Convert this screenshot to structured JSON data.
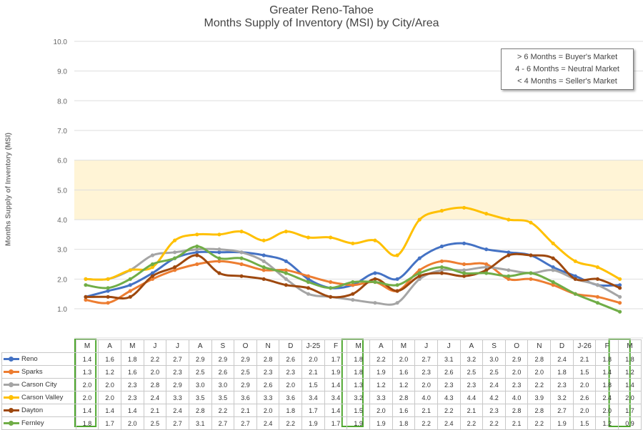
{
  "chart_data": {
    "type": "line",
    "title": "Greater Reno-Tahoe",
    "subtitle": "Months Supply of Inventory (MSI) by City/Area",
    "ylabel": "Months Supply of Inventory (MSI)",
    "ylim": [
      0,
      10
    ],
    "yticks": [
      "1.0",
      "2.0",
      "3.0",
      "4.0",
      "5.0",
      "6.0",
      "7.0",
      "8.0",
      "9.0",
      "10.0"
    ],
    "neutral_band": [
      4,
      6
    ],
    "categories": [
      "M",
      "A",
      "M",
      "J",
      "J",
      "A",
      "S",
      "O",
      "N",
      "D",
      "J-25",
      "F",
      "M",
      "A",
      "M",
      "J",
      "J",
      "A",
      "S",
      "O",
      "N",
      "D",
      "J-26",
      "F",
      "M"
    ],
    "highlighted_columns": [
      0,
      12,
      24
    ],
    "legend_box": [
      "> 6 Months = Buyer's Market",
      "4 - 6 Months = Neutral Market",
      "< 4 Months = Seller's Market"
    ],
    "series": [
      {
        "name": "Reno",
        "color": "#4472C4",
        "values": [
          1.4,
          1.6,
          1.8,
          2.2,
          2.7,
          2.9,
          2.9,
          2.9,
          2.8,
          2.6,
          2.0,
          1.7,
          1.8,
          2.2,
          2.0,
          2.7,
          3.1,
          3.2,
          3.0,
          2.9,
          2.8,
          2.4,
          2.1,
          1.8,
          1.8
        ]
      },
      {
        "name": "Sparks",
        "color": "#ED7D31",
        "values": [
          1.3,
          1.2,
          1.6,
          2.0,
          2.3,
          2.5,
          2.6,
          2.5,
          2.3,
          2.3,
          2.1,
          1.9,
          1.8,
          1.9,
          1.6,
          2.3,
          2.6,
          2.5,
          2.5,
          2.0,
          2.0,
          1.8,
          1.5,
          1.4,
          1.2
        ]
      },
      {
        "name": "Carson City",
        "color": "#A5A5A5",
        "values": [
          2.0,
          2.0,
          2.3,
          2.8,
          2.9,
          3.0,
          3.0,
          2.9,
          2.6,
          2.0,
          1.5,
          1.4,
          1.3,
          1.2,
          1.2,
          2.0,
          2.3,
          2.3,
          2.4,
          2.3,
          2.2,
          2.3,
          2.0,
          1.8,
          1.4
        ]
      },
      {
        "name": "Carson Valley",
        "color": "#FFC000",
        "values": [
          2.0,
          2.0,
          2.3,
          2.4,
          3.3,
          3.5,
          3.5,
          3.6,
          3.3,
          3.6,
          3.4,
          3.4,
          3.2,
          3.3,
          2.8,
          4.0,
          4.3,
          4.4,
          4.2,
          4.0,
          3.9,
          3.2,
          2.6,
          2.4,
          2.0
        ]
      },
      {
        "name": "Dayton",
        "color": "#9E480E",
        "values": [
          1.4,
          1.4,
          1.4,
          2.1,
          2.4,
          2.8,
          2.2,
          2.1,
          2.0,
          1.8,
          1.7,
          1.4,
          1.5,
          2.0,
          1.6,
          2.1,
          2.2,
          2.1,
          2.3,
          2.8,
          2.8,
          2.7,
          2.0,
          2.0,
          1.7
        ]
      },
      {
        "name": "Fernley",
        "color": "#70AD47",
        "values": [
          1.8,
          1.7,
          2.0,
          2.5,
          2.7,
          3.1,
          2.7,
          2.7,
          2.4,
          2.2,
          1.9,
          1.7,
          1.9,
          1.9,
          1.8,
          2.2,
          2.4,
          2.2,
          2.2,
          2.1,
          2.2,
          1.9,
          1.5,
          1.2,
          0.9
        ]
      }
    ]
  }
}
